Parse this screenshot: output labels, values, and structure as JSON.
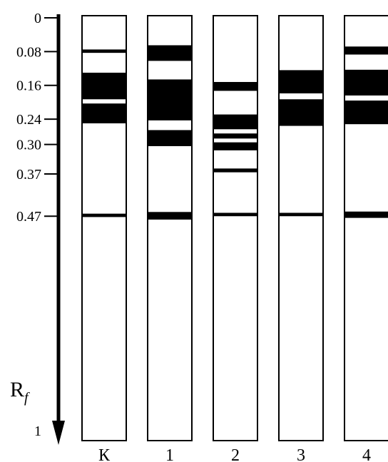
{
  "axis": {
    "symbol": "R",
    "subscript": "f",
    "end_label": "1",
    "ticks": [
      {
        "value": 0,
        "label": "0"
      },
      {
        "value": 0.08,
        "label": "0.08"
      },
      {
        "value": 0.16,
        "label": "0.16"
      },
      {
        "value": 0.24,
        "label": "0.24"
      },
      {
        "value": 0.3,
        "label": "0.30"
      },
      {
        "value": 0.37,
        "label": "0.37"
      },
      {
        "value": 0.47,
        "label": "0.47"
      }
    ]
  },
  "colors": {
    "band": "#000000",
    "lane_fill": "#ffffff",
    "lane_border": "#000000"
  },
  "lanes": [
    {
      "label": "К",
      "bands": [
        [
          0.075,
          0.083
        ],
        [
          0.13,
          0.193
        ],
        [
          0.203,
          0.25
        ],
        [
          0.464,
          0.472
        ]
      ]
    },
    {
      "label": "1",
      "bands": [
        [
          0.065,
          0.102
        ],
        [
          0.146,
          0.243
        ],
        [
          0.266,
          0.304
        ],
        [
          0.46,
          0.478
        ]
      ]
    },
    {
      "label": "2",
      "bands": [
        [
          0.152,
          0.173
        ],
        [
          0.229,
          0.264
        ],
        [
          0.274,
          0.286
        ],
        [
          0.295,
          0.314
        ],
        [
          0.357,
          0.366
        ],
        [
          0.462,
          0.47
        ]
      ]
    },
    {
      "label": "3",
      "bands": [
        [
          0.124,
          0.179
        ],
        [
          0.193,
          0.256
        ],
        [
          0.462,
          0.47
        ]
      ]
    },
    {
      "label": "4",
      "bands": [
        [
          0.068,
          0.087
        ],
        [
          0.123,
          0.184
        ],
        [
          0.196,
          0.252
        ],
        [
          0.459,
          0.474
        ]
      ]
    }
  ]
}
